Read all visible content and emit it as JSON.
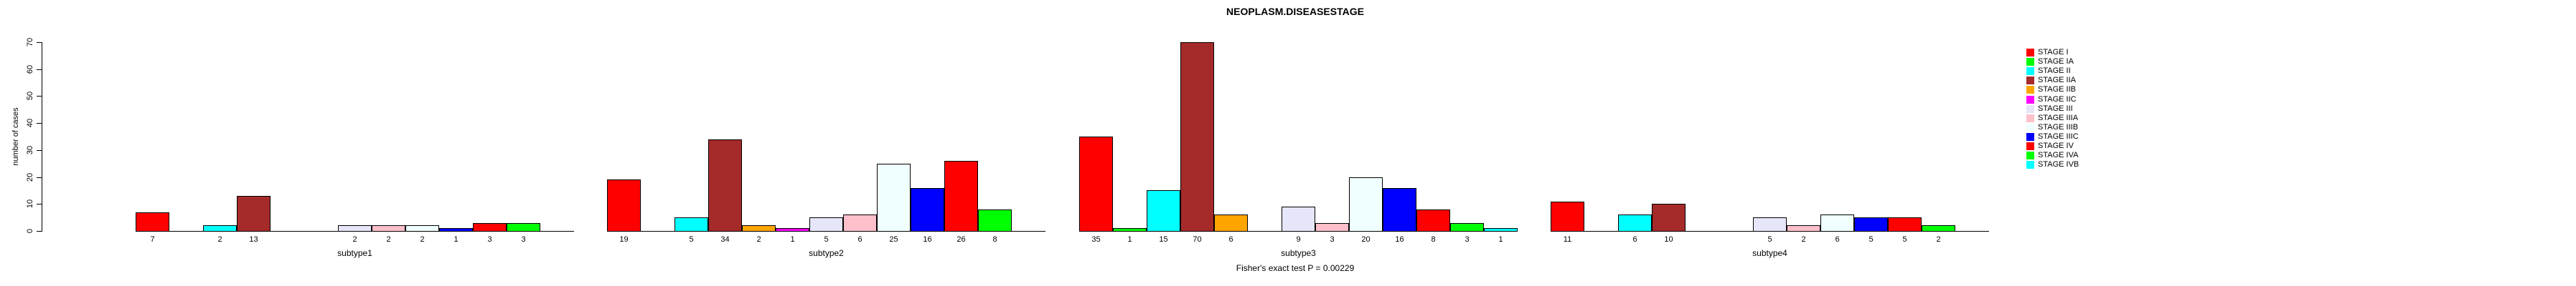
{
  "chart_data": {
    "type": "bar",
    "title": "NEOPLASM.DISEASESTAGE",
    "ylabel": "number of cases",
    "xlabel": "",
    "ylim": [
      0,
      70
    ],
    "yticks": [
      0,
      10,
      20,
      30,
      40,
      50,
      60,
      70
    ],
    "grid": false,
    "legend_position": "right",
    "bar_border_color": "#000000",
    "stages": [
      {
        "label": "STAGE I",
        "color": "#FF0000"
      },
      {
        "label": "STAGE IA",
        "color": "#00FF00"
      },
      {
        "label": "STAGE II",
        "color": "#00FFFF"
      },
      {
        "label": "STAGE IIA",
        "color": "#A52A2A"
      },
      {
        "label": "STAGE IIB",
        "color": "#FFA500"
      },
      {
        "label": "STAGE IIC",
        "color": "#FF00FF"
      },
      {
        "label": "STAGE III",
        "color": "#E6E6FA"
      },
      {
        "label": "STAGE IIIA",
        "color": "#FFC0CB"
      },
      {
        "label": "STAGE IIIB",
        "color": "#F0FFFF"
      },
      {
        "label": "STAGE IIIC",
        "color": "#0000FF"
      },
      {
        "label": "STAGE IV",
        "color": "#FF0000"
      },
      {
        "label": "STAGE IVA",
        "color": "#00FF00"
      },
      {
        "label": "STAGE IVB",
        "color": "#00FFFF"
      }
    ],
    "groups": [
      {
        "label": "subtype1",
        "values": [
          7,
          0,
          2,
          13,
          0,
          0,
          2,
          2,
          2,
          1,
          3,
          3,
          0
        ]
      },
      {
        "label": "subtype2",
        "values": [
          19,
          0,
          5,
          34,
          2,
          1,
          5,
          6,
          25,
          16,
          26,
          8,
          0
        ]
      },
      {
        "label": "subtype3",
        "values": [
          35,
          1,
          15,
          70,
          6,
          0,
          9,
          3,
          20,
          16,
          8,
          3,
          1
        ]
      },
      {
        "label": "subtype4",
        "values": [
          11,
          0,
          6,
          10,
          0,
          0,
          5,
          2,
          6,
          5,
          5,
          2,
          0
        ]
      }
    ],
    "footnote": "Fisher's exact test P = 0.00229"
  }
}
